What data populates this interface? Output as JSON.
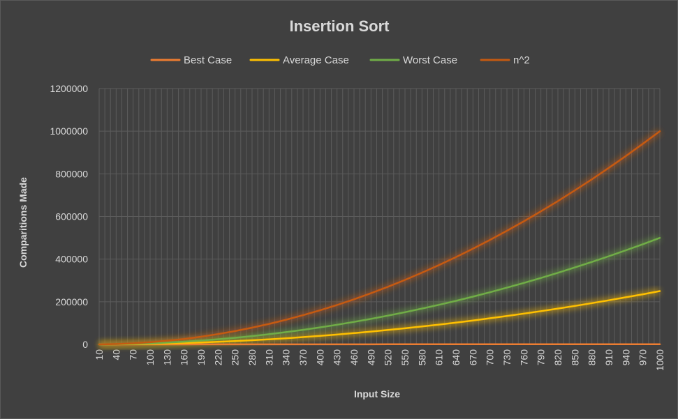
{
  "chart_data": {
    "type": "line",
    "title": "Insertion Sort",
    "xlabel": "Input Size",
    "ylabel": "Comparitions Made",
    "ylim": [
      0,
      1200000
    ],
    "yticks": [
      0,
      200000,
      400000,
      600000,
      800000,
      1000000,
      1200000
    ],
    "xlim": [
      10,
      1000
    ],
    "xticks": [
      10,
      40,
      70,
      100,
      130,
      160,
      190,
      220,
      250,
      280,
      310,
      340,
      370,
      400,
      430,
      460,
      490,
      520,
      550,
      580,
      610,
      640,
      670,
      700,
      730,
      760,
      790,
      820,
      850,
      880,
      910,
      940,
      970,
      1000
    ],
    "grid": true,
    "legend_position": "top",
    "x": [
      10,
      40,
      70,
      100,
      130,
      160,
      190,
      220,
      250,
      280,
      310,
      340,
      370,
      400,
      430,
      460,
      490,
      520,
      550,
      580,
      610,
      640,
      670,
      700,
      730,
      760,
      790,
      820,
      850,
      880,
      910,
      940,
      970,
      1000
    ],
    "series": [
      {
        "name": "Best Case",
        "color": "#ed7d31",
        "values": [
          9,
          39,
          69,
          99,
          129,
          159,
          189,
          219,
          249,
          279,
          309,
          339,
          369,
          399,
          429,
          459,
          489,
          519,
          549,
          579,
          609,
          639,
          669,
          699,
          729,
          759,
          789,
          819,
          849,
          879,
          909,
          939,
          969,
          999
        ]
      },
      {
        "name": "Average Case",
        "color": "#ffc000",
        "values": [
          25,
          400,
          1225,
          2500,
          4200,
          6400,
          9000,
          12100,
          15600,
          19600,
          24000,
          28900,
          34200,
          40000,
          46200,
          52900,
          60000,
          67600,
          75600,
          84100,
          93000,
          102400,
          112200,
          122500,
          133200,
          144400,
          156000,
          168100,
          180600,
          193600,
          207000,
          220900,
          235200,
          250000
        ]
      },
      {
        "name": "Worst Case",
        "color": "#70ad47",
        "values": [
          45,
          780,
          2415,
          4950,
          8385,
          12720,
          17955,
          24090,
          31125,
          39060,
          47895,
          57630,
          68265,
          79800,
          92235,
          105570,
          119805,
          134940,
          150975,
          167910,
          185745,
          204480,
          224115,
          244650,
          266085,
          288420,
          311655,
          335790,
          360825,
          386760,
          413595,
          441330,
          469965,
          499500
        ]
      },
      {
        "name": "n^2",
        "color": "#c55a11",
        "values": [
          100,
          1600,
          4900,
          10000,
          16900,
          25600,
          36100,
          48400,
          62500,
          78400,
          96100,
          115600,
          136900,
          160000,
          184900,
          211600,
          240100,
          270400,
          302500,
          336400,
          372100,
          409600,
          448900,
          490000,
          532900,
          577600,
          624100,
          672400,
          722500,
          774400,
          828100,
          883600,
          940900,
          1000000
        ]
      }
    ]
  }
}
